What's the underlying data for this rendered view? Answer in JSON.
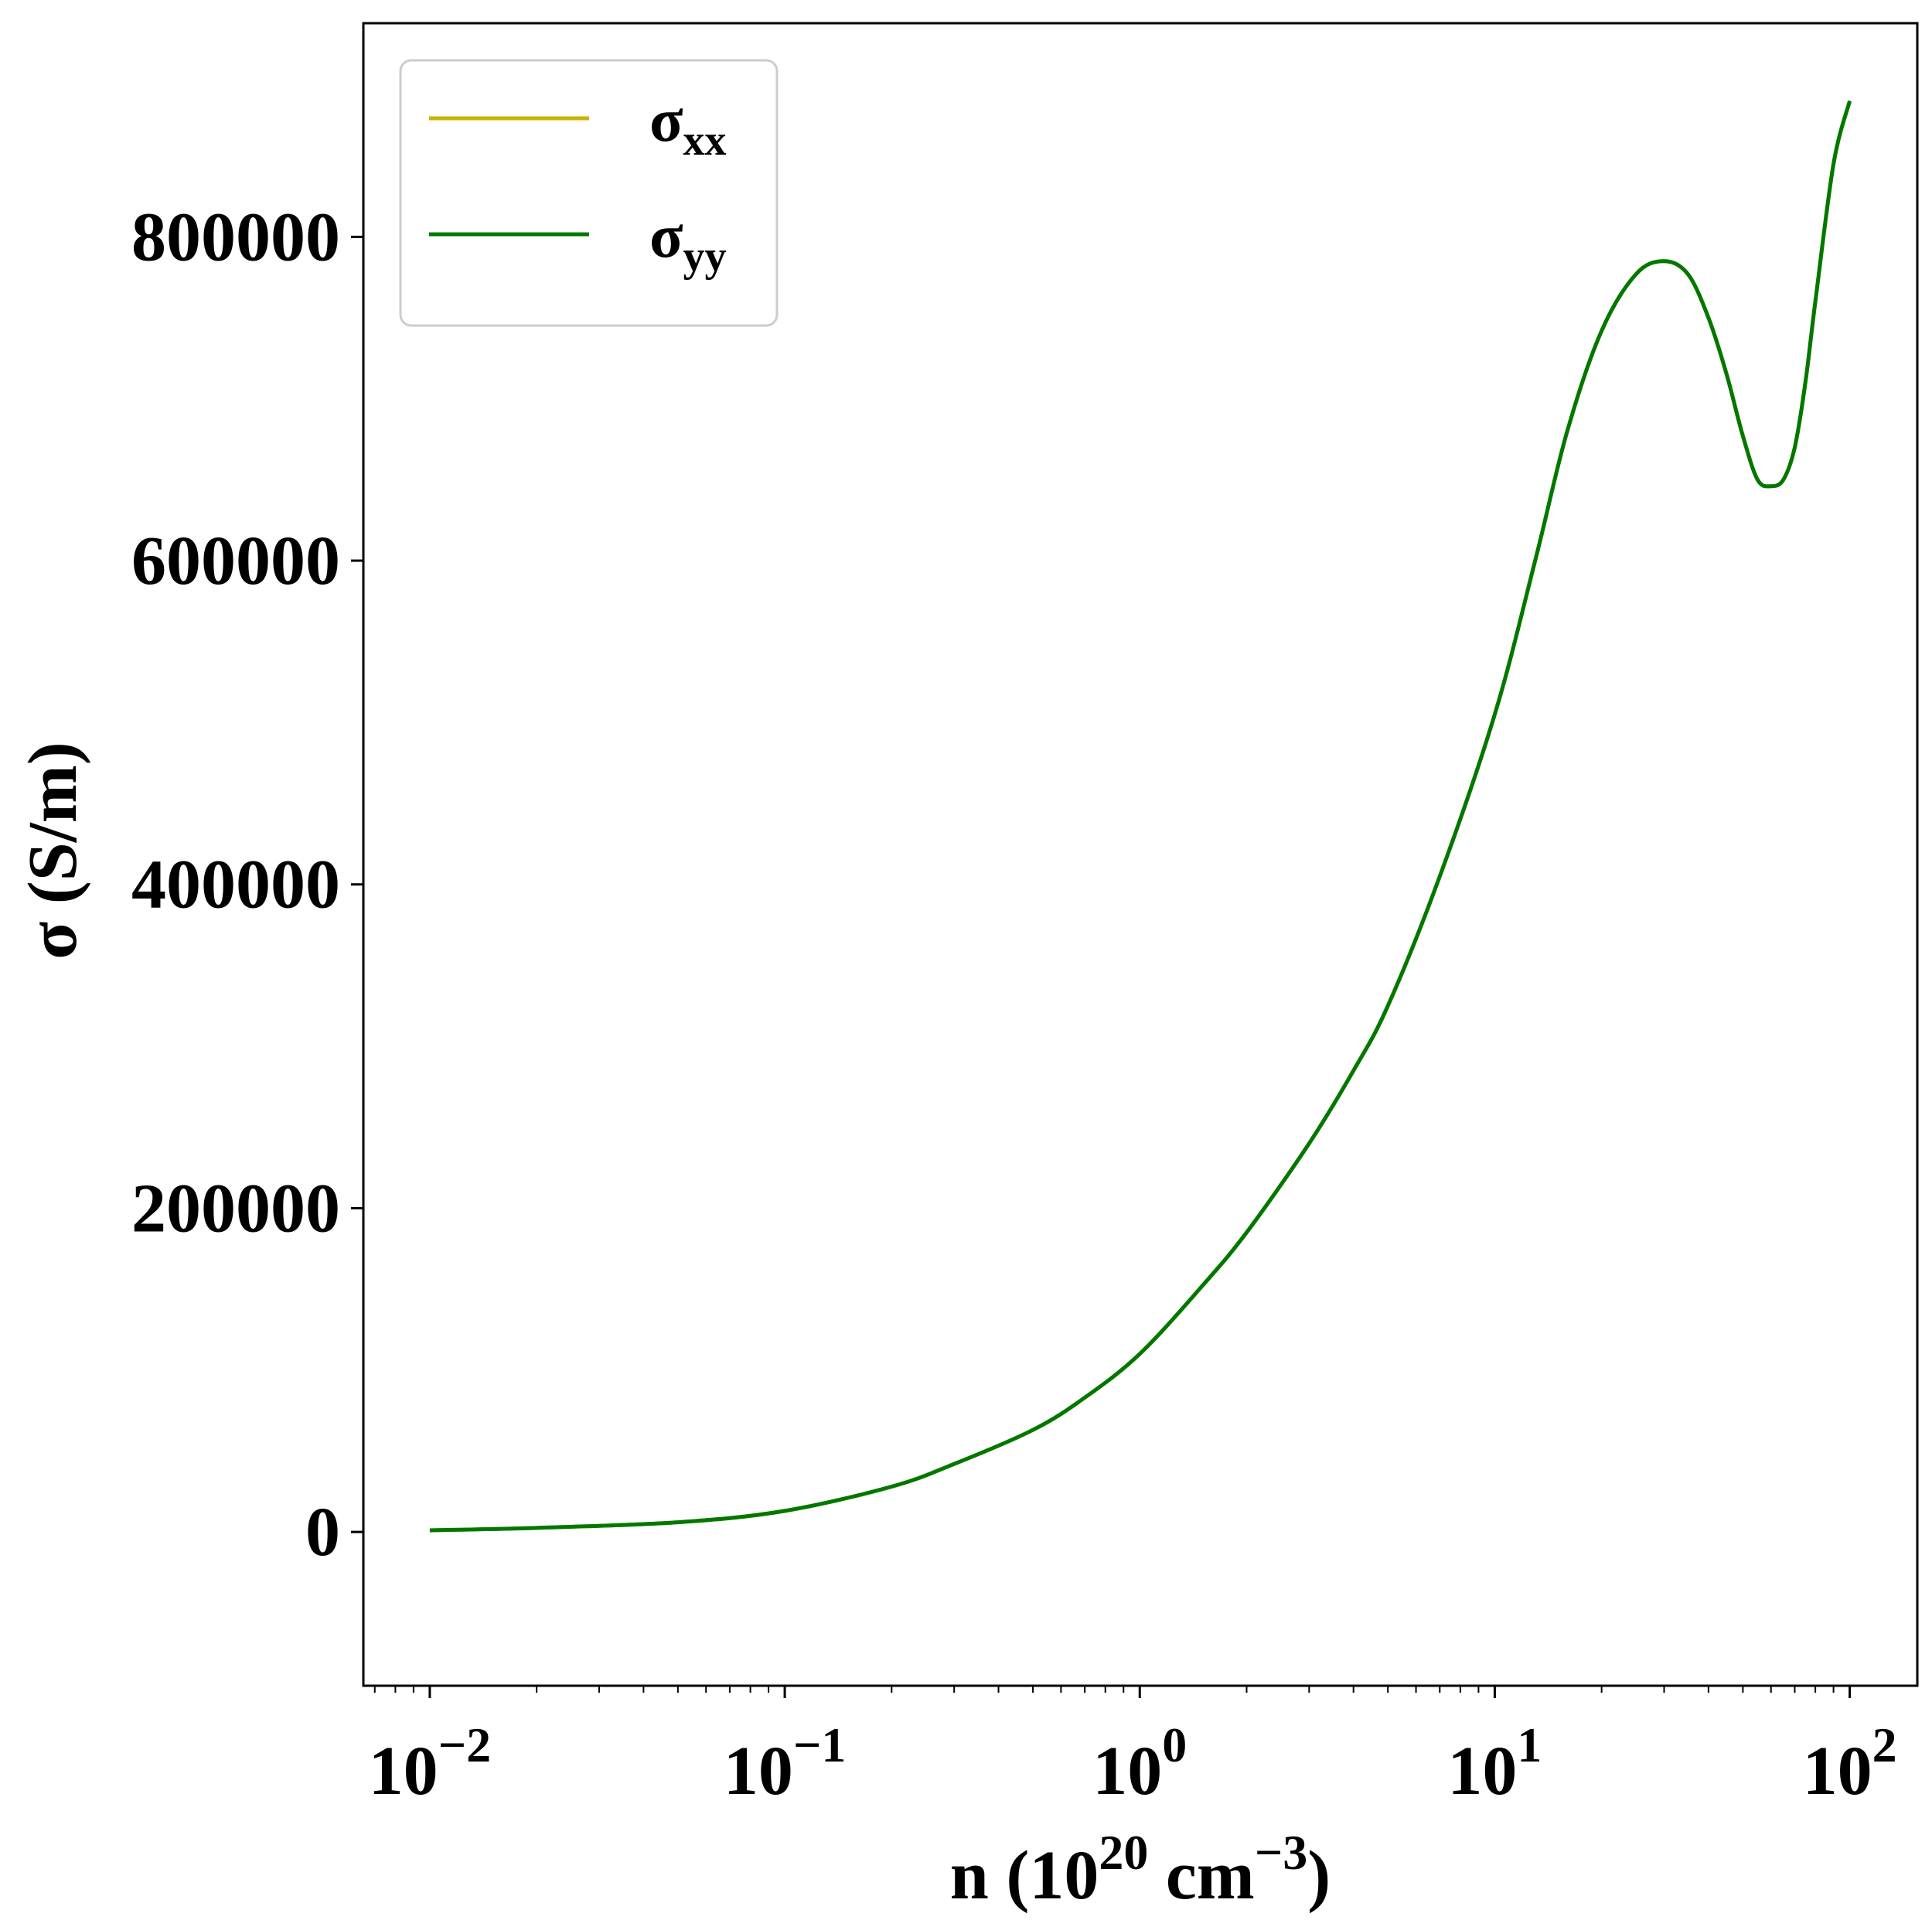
{
  "chart_data": {
    "type": "line",
    "xscale": "log",
    "xlim": [
      0.0065,
      155
    ],
    "ylim": [
      -95000,
      932000
    ],
    "x_ticks": [
      {
        "value": 0.01,
        "base": "10",
        "exp": "−2"
      },
      {
        "value": 0.1,
        "base": "10",
        "exp": "−1"
      },
      {
        "value": 1,
        "base": "10",
        "exp": "0"
      },
      {
        "value": 10,
        "base": "10",
        "exp": "1"
      },
      {
        "value": 100,
        "base": "10",
        "exp": "2"
      }
    ],
    "y_ticks": [
      {
        "value": 0,
        "label": "0"
      },
      {
        "value": 200000,
        "label": "200000"
      },
      {
        "value": 400000,
        "label": "400000"
      },
      {
        "value": 600000,
        "label": "600000"
      },
      {
        "value": 800000,
        "label": "800000"
      }
    ],
    "xlabel": {
      "main": "n (10",
      "sup1": "20",
      "mid": " cm",
      "sup2": "−3",
      "end": ")"
    },
    "ylabel": "σ (S/m)",
    "legend": {
      "position": "upper-left"
    },
    "series": [
      {
        "name": "σ",
        "sub": "xx",
        "color": "#c8b400",
        "x": [
          0.01,
          0.02,
          0.05,
          0.1,
          0.2,
          0.3,
          0.5,
          0.7,
          1,
          1.5,
          2,
          3,
          4,
          5,
          7,
          10,
          13,
          16,
          20,
          25,
          30,
          35,
          40,
          45,
          50,
          55,
          60,
          65,
          70,
          75,
          80,
          90,
          100
        ],
        "y": [
          1000,
          2500,
          6000,
          13000,
          28000,
          42000,
          63000,
          83000,
          110000,
          152000,
          185000,
          240000,
          285000,
          325000,
          405000,
          505000,
          600000,
          680000,
          742000,
          777000,
          785000,
          777000,
          750000,
          715000,
          677000,
          650000,
          646000,
          650000,
          670000,
          710000,
          760000,
          845000,
          884000
        ]
      },
      {
        "name": "σ",
        "sub": "yy",
        "color": "#007800",
        "x": [
          0.01,
          0.02,
          0.05,
          0.1,
          0.2,
          0.3,
          0.5,
          0.7,
          1,
          1.5,
          2,
          3,
          4,
          5,
          7,
          10,
          13,
          16,
          20,
          25,
          30,
          35,
          40,
          45,
          50,
          55,
          60,
          65,
          70,
          75,
          80,
          90,
          100
        ],
        "y": [
          1000,
          2500,
          6000,
          13000,
          28000,
          42000,
          63000,
          83000,
          110000,
          152000,
          185000,
          240000,
          285000,
          325000,
          405000,
          505000,
          600000,
          680000,
          742000,
          777000,
          785000,
          777000,
          750000,
          715000,
          677000,
          650000,
          646000,
          650000,
          670000,
          710000,
          760000,
          845000,
          884000
        ]
      }
    ]
  }
}
